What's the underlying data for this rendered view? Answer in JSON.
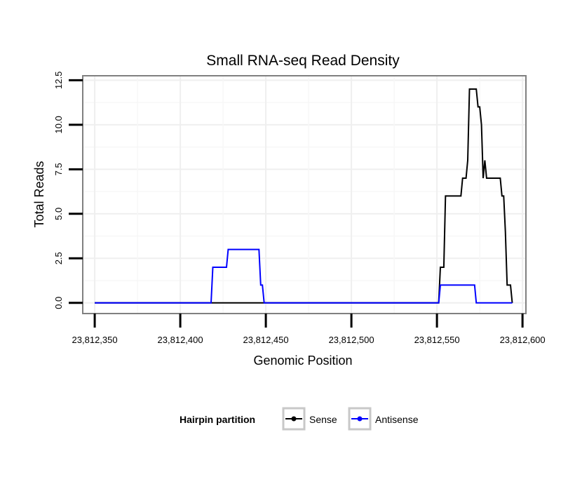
{
  "chart_data": {
    "type": "line",
    "title": "Small RNA-seq Read Density",
    "xlabel": "Genomic Position",
    "ylabel": "Total Reads",
    "xlim": [
      23812343,
      23812602
    ],
    "ylim": [
      -0.6,
      12.75
    ],
    "x_ticks": [
      23812350,
      23812400,
      23812450,
      23812500,
      23812550,
      23812600
    ],
    "x_tick_labels": [
      "23,812,350",
      "23,812,400",
      "23,812,450",
      "23,812,500",
      "23,812,550",
      "23,812,600"
    ],
    "y_ticks": [
      0,
      2.5,
      5,
      7.5,
      10,
      12.5
    ],
    "y_tick_labels": [
      "0.0",
      "2.5",
      "5.0",
      "7.5",
      "10.0",
      "12.5"
    ],
    "grid": true,
    "legend": {
      "title": "Hairpin partition",
      "position": "bottom"
    },
    "series": [
      {
        "name": "Sense",
        "color": "#000000",
        "x": [
          23812350,
          23812551,
          23812552,
          23812554,
          23812555,
          23812564,
          23812565,
          23812567,
          23812568,
          23812569,
          23812573,
          23812574,
          23812575,
          23812576,
          23812577,
          23812578,
          23812579,
          23812580,
          23812581,
          23812587,
          23812588,
          23812589,
          23812590,
          23812591,
          23812593,
          23812594
        ],
        "y": [
          0,
          0,
          2,
          2,
          6,
          6,
          7,
          7,
          8,
          12,
          12,
          11,
          11,
          10,
          7,
          8,
          7,
          7,
          7,
          7,
          6,
          6,
          4,
          1,
          1,
          0
        ]
      },
      {
        "name": "Antisense",
        "color": "#0000ff",
        "x": [
          23812350,
          23812418,
          23812419,
          23812427,
          23812428,
          23812446,
          23812447,
          23812448,
          23812449,
          23812551,
          23812552,
          23812572,
          23812573,
          23812594
        ],
        "y": [
          0,
          0,
          2,
          2,
          3,
          3,
          1,
          1,
          0,
          0,
          1,
          1,
          0,
          0
        ]
      }
    ]
  }
}
